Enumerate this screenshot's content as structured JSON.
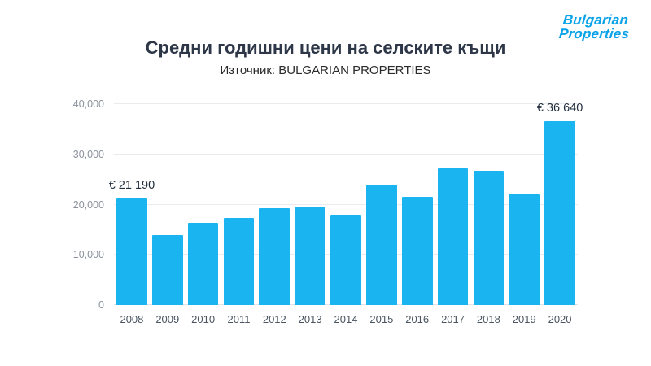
{
  "logo": {
    "line1": "Bulgarian",
    "line2": "Properties",
    "color": "#0aa3e8"
  },
  "header": {
    "title": "Средни годишни цени на селските къщи",
    "subtitle": "Източник: BULGARIAN PROPERTIES"
  },
  "chart_data": {
    "type": "bar",
    "title": "Средни годишни цени на селските къщи",
    "subtitle": "Източник: BULGARIAN PROPERTIES",
    "categories": [
      "2008",
      "2009",
      "2010",
      "2011",
      "2012",
      "2013",
      "2014",
      "2015",
      "2016",
      "2017",
      "2018",
      "2019",
      "2020"
    ],
    "values": [
      21190,
      14000,
      16300,
      17300,
      19200,
      19600,
      18000,
      23900,
      21500,
      27200,
      26800,
      22000,
      36640
    ],
    "annotations": [
      {
        "index": 0,
        "text": "€ 21 190"
      },
      {
        "index": 12,
        "text": "€ 36 640"
      }
    ],
    "ylim": [
      0,
      40000
    ],
    "yticks": [
      0,
      10000,
      20000,
      30000,
      40000
    ],
    "ytick_labels": [
      "0",
      "10,000",
      "20,000",
      "30,000",
      "40,000"
    ],
    "bar_color": "#1ab5f1",
    "grid": true,
    "legend": false,
    "xlabel": "",
    "ylabel": ""
  }
}
